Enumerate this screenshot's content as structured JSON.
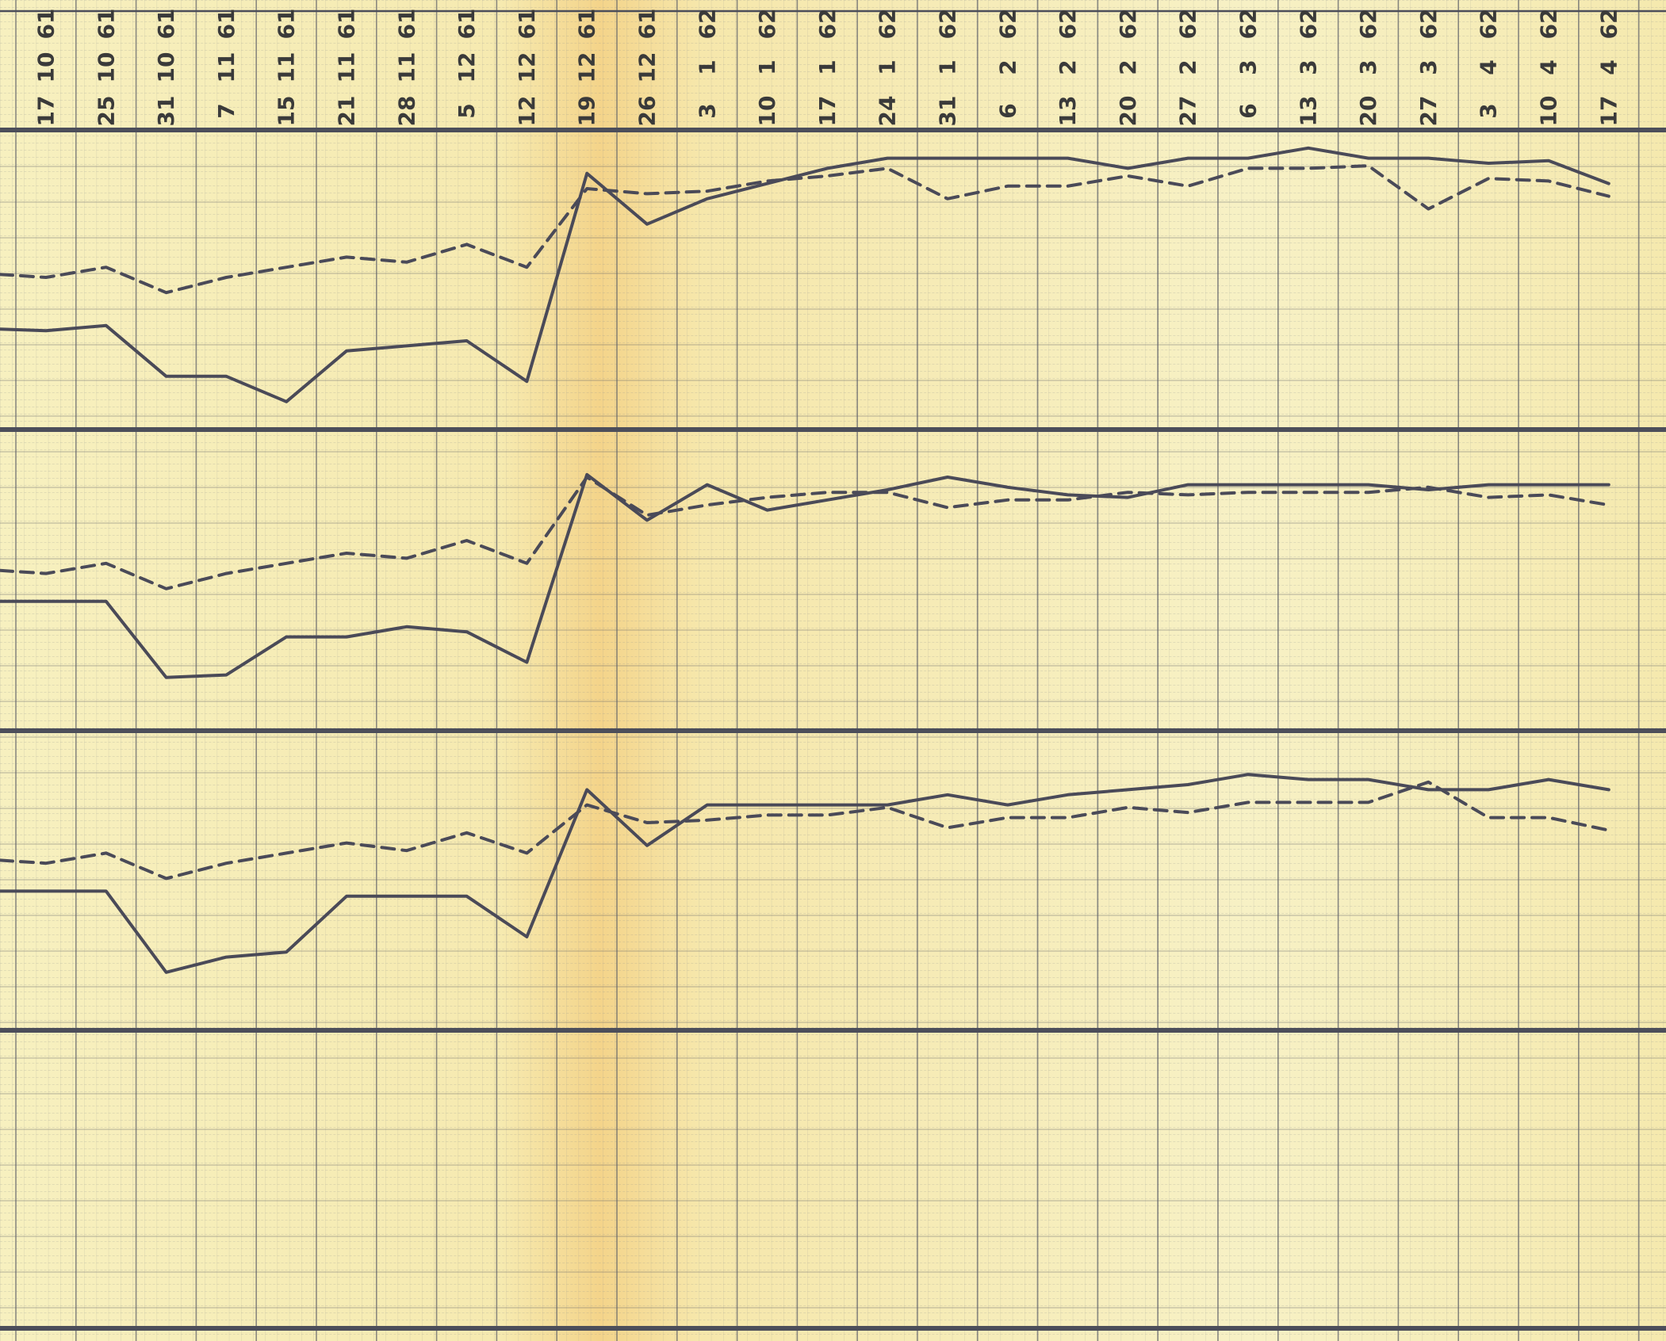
{
  "colors": {
    "paper": "#f6efbd",
    "paper_warm": "#f4d990",
    "grid_minor": "#8a8c8c",
    "grid_major": "#5e6068",
    "band_rule": "#4c4e5a",
    "line": "#4a4a58"
  },
  "chart_data": {
    "type": "line",
    "grid": true,
    "x_columns": [
      {
        "day": "17",
        "month": "10",
        "year": "61"
      },
      {
        "day": "25",
        "month": "10",
        "year": "61"
      },
      {
        "day": "31",
        "month": "10",
        "year": "61"
      },
      {
        "day": "7",
        "month": "11",
        "year": "61"
      },
      {
        "day": "15",
        "month": "11",
        "year": "61"
      },
      {
        "day": "21",
        "month": "11",
        "year": "61"
      },
      {
        "day": "28",
        "month": "11",
        "year": "61"
      },
      {
        "day": "5",
        "month": "12",
        "year": "61"
      },
      {
        "day": "12",
        "month": "12",
        "year": "61"
      },
      {
        "day": "19",
        "month": "12",
        "year": "61"
      },
      {
        "day": "26",
        "month": "12",
        "year": "61"
      },
      {
        "day": "3",
        "month": "1",
        "year": "62"
      },
      {
        "day": "10",
        "month": "1",
        "year": "62"
      },
      {
        "day": "17",
        "month": "1",
        "year": "62"
      },
      {
        "day": "24",
        "month": "1",
        "year": "62"
      },
      {
        "day": "31",
        "month": "1",
        "year": "62"
      },
      {
        "day": "6",
        "month": "2",
        "year": "62"
      },
      {
        "day": "13",
        "month": "2",
        "year": "62"
      },
      {
        "day": "20",
        "month": "2",
        "year": "62"
      },
      {
        "day": "27",
        "month": "2",
        "year": "62"
      },
      {
        "day": "6",
        "month": "3",
        "year": "62"
      },
      {
        "day": "13",
        "month": "3",
        "year": "62"
      },
      {
        "day": "20",
        "month": "3",
        "year": "62"
      },
      {
        "day": "27",
        "month": "3",
        "year": "62"
      },
      {
        "day": "3",
        "month": "4",
        "year": "62"
      },
      {
        "day": "10",
        "month": "4",
        "year": "62"
      },
      {
        "day": "17",
        "month": "4",
        "year": "62"
      }
    ],
    "panels": [
      {
        "series": [
          {
            "style": "solid",
            "values": [
              -0.3,
              -0.2,
              -1.2,
              -1.2,
              -1.7,
              -0.7,
              -0.6,
              -0.5,
              -1.3,
              2.8,
              1.8,
              2.3,
              2.6,
              2.9,
              3.1,
              3.1,
              3.1,
              3.1,
              2.9,
              3.1,
              3.1,
              3.3,
              3.1,
              3.1,
              3.0,
              3.05,
              2.6
            ]
          },
          {
            "style": "dashed",
            "values": [
              0.75,
              0.95,
              0.45,
              0.75,
              0.95,
              1.15,
              1.05,
              1.4,
              0.95,
              2.5,
              2.4,
              2.45,
              2.65,
              2.75,
              2.9,
              2.3,
              2.55,
              2.55,
              2.75,
              2.55,
              2.9,
              2.9,
              2.95,
              2.1,
              2.7,
              2.65,
              2.35
            ]
          }
        ]
      },
      {
        "series": [
          {
            "style": "solid",
            "values": [
              0.3,
              0.3,
              -1.2,
              -1.15,
              -0.4,
              -0.4,
              -0.2,
              -0.3,
              -0.9,
              2.8,
              1.9,
              2.6,
              2.1,
              2.3,
              2.5,
              2.75,
              2.55,
              2.4,
              2.35,
              2.6,
              2.6,
              2.6,
              2.6,
              2.5,
              2.6,
              2.6,
              2.6
            ]
          },
          {
            "style": "dashed",
            "values": [
              0.85,
              1.05,
              0.55,
              0.85,
              1.05,
              1.25,
              1.15,
              1.5,
              1.05,
              2.75,
              2.0,
              2.2,
              2.35,
              2.45,
              2.45,
              2.15,
              2.3,
              2.3,
              2.45,
              2.4,
              2.45,
              2.45,
              2.45,
              2.55,
              2.35,
              2.4,
              2.2
            ]
          }
        ]
      },
      {
        "series": [
          {
            "style": "solid",
            "values": [
              0.4,
              0.4,
              -1.2,
              -0.9,
              -0.8,
              0.3,
              0.3,
              0.3,
              -0.5,
              2.4,
              1.3,
              2.1,
              2.1,
              2.1,
              2.1,
              2.3,
              2.1,
              2.3,
              2.4,
              2.5,
              2.7,
              2.6,
              2.6,
              2.4,
              2.4,
              2.6,
              2.4
            ]
          },
          {
            "style": "dashed",
            "values": [
              0.95,
              1.15,
              0.65,
              0.95,
              1.15,
              1.35,
              1.2,
              1.55,
              1.15,
              2.1,
              1.75,
              1.8,
              1.9,
              1.9,
              2.05,
              1.65,
              1.85,
              1.85,
              2.05,
              1.95,
              2.15,
              2.15,
              2.15,
              2.55,
              1.85,
              1.85,
              1.6
            ]
          }
        ]
      }
    ]
  }
}
